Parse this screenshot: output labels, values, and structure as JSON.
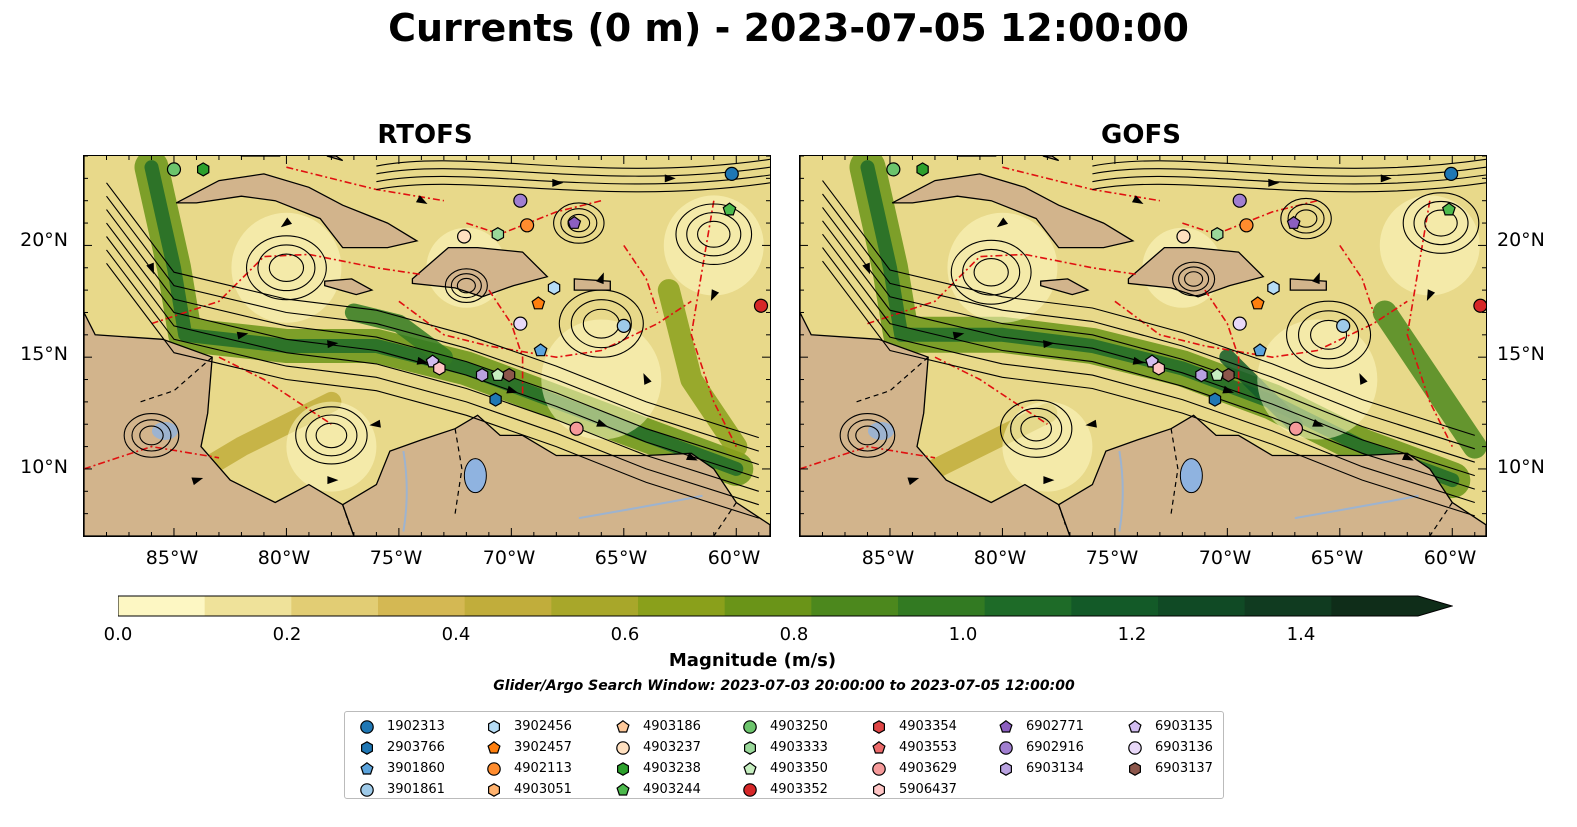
{
  "title": "Currents (0 m) - 2023-07-05 12:00:00",
  "panels": [
    {
      "title": "RTOFS"
    },
    {
      "title": "GOFS"
    }
  ],
  "axes": {
    "lat_labels": [
      "20°N",
      "15°N",
      "10°N"
    ],
    "lon_labels": [
      "85°W",
      "80°W",
      "75°W",
      "70°W",
      "65°W",
      "60°W"
    ],
    "lon_range": [
      -89,
      -58.5
    ],
    "lat_range": [
      7,
      24
    ]
  },
  "colorbar": {
    "label": "Magnitude (m/s)",
    "ticks": [
      "0.0",
      "0.2",
      "0.4",
      "0.6",
      "0.8",
      "1.0",
      "1.2",
      "1.4"
    ],
    "range": [
      0,
      1.5
    ],
    "extend": "max",
    "colors": [
      "#fdf7c3",
      "#efe29a",
      "#e2cd74",
      "#d4b853",
      "#c1ad3b",
      "#a8a72a",
      "#8aa01b",
      "#6a9418",
      "#4c881d",
      "#327a22",
      "#1e6b28",
      "#135a28",
      "#104a25",
      "#103b20",
      "#0f2d19"
    ]
  },
  "search_window": "Glider/Argo Search Window: 2023-07-03 20:00:00 to 2023-07-05 12:00:00",
  "legend": [
    [
      {
        "id": "1902313",
        "shape": "circle",
        "color": "#1f77b4"
      },
      {
        "id": "2903766",
        "shape": "hexagon",
        "color": "#1f77b4"
      },
      {
        "id": "3901860",
        "shape": "pentagon",
        "color": "#5ba3dc"
      },
      {
        "id": "3901861",
        "shape": "circle",
        "color": "#9ecae9"
      }
    ],
    [
      {
        "id": "3902456",
        "shape": "hexagon",
        "color": "#b6dcf5"
      },
      {
        "id": "3902457",
        "shape": "pentagon",
        "color": "#ff7f0e"
      },
      {
        "id": "4902113",
        "shape": "circle",
        "color": "#ff8c2e"
      },
      {
        "id": "4903051",
        "shape": "hexagon",
        "color": "#ffb26e"
      }
    ],
    [
      {
        "id": "4903186",
        "shape": "pentagon",
        "color": "#ffc99a"
      },
      {
        "id": "4903237",
        "shape": "circle",
        "color": "#ffe0c0"
      },
      {
        "id": "4903238",
        "shape": "hexagon",
        "color": "#2ca02c"
      },
      {
        "id": "4903244",
        "shape": "pentagon",
        "color": "#4cba4c"
      }
    ],
    [
      {
        "id": "4903250",
        "shape": "circle",
        "color": "#6cc46c"
      },
      {
        "id": "4903333",
        "shape": "hexagon",
        "color": "#9ad89a"
      },
      {
        "id": "4903350",
        "shape": "pentagon",
        "color": "#c6efc0"
      },
      {
        "id": "4903352",
        "shape": "circle",
        "color": "#d62728"
      }
    ],
    [
      {
        "id": "4903354",
        "shape": "hexagon",
        "color": "#e04646"
      },
      {
        "id": "4903553",
        "shape": "pentagon",
        "color": "#ec6a6a"
      },
      {
        "id": "4903629",
        "shape": "circle",
        "color": "#f59a9a"
      },
      {
        "id": "5906437",
        "shape": "hexagon",
        "color": "#ffc6c6"
      }
    ],
    [
      {
        "id": "6902771",
        "shape": "pentagon",
        "color": "#8c5fc0"
      },
      {
        "id": "6902916",
        "shape": "circle",
        "color": "#a07ed0"
      },
      {
        "id": "6903134",
        "shape": "hexagon",
        "color": "#b9a2e0"
      }
    ],
    [
      {
        "id": "6903135",
        "shape": "pentagon",
        "color": "#d2bdf0"
      },
      {
        "id": "6903136",
        "shape": "circle",
        "color": "#e8d8f8"
      },
      {
        "id": "6903137",
        "shape": "hexagon",
        "color": "#8c564b"
      }
    ]
  ],
  "markers": [
    {
      "id": "1902313",
      "lon": -60.2,
      "lat": 23.2
    },
    {
      "id": "4903244",
      "lon": -60.3,
      "lat": 21.6
    },
    {
      "id": "4903250",
      "lon": -85.0,
      "lat": 23.4
    },
    {
      "id": "4903238",
      "lon": -83.7,
      "lat": 23.4
    },
    {
      "id": "6902916",
      "lon": -69.6,
      "lat": 22.0
    },
    {
      "id": "6902771",
      "lon": -67.2,
      "lat": 21.0
    },
    {
      "id": "4902113",
      "lon": -69.3,
      "lat": 20.9
    },
    {
      "id": "4903333",
      "lon": -70.6,
      "lat": 20.5
    },
    {
      "id": "4903237",
      "lon": -72.1,
      "lat": 20.4
    },
    {
      "id": "3902456",
      "lon": -68.1,
      "lat": 18.1
    },
    {
      "id": "3902457",
      "lon": -68.8,
      "lat": 17.4
    },
    {
      "id": "4903352",
      "lon": -58.9,
      "lat": 17.3
    },
    {
      "id": "6903136",
      "lon": -69.6,
      "lat": 16.5
    },
    {
      "id": "3901861",
      "lon": -65.0,
      "lat": 16.4
    },
    {
      "id": "3901860",
      "lon": -68.7,
      "lat": 15.3
    },
    {
      "id": "6903135",
      "lon": -73.5,
      "lat": 14.8
    },
    {
      "id": "5906437",
      "lon": -73.2,
      "lat": 14.5
    },
    {
      "id": "6903134",
      "lon": -71.3,
      "lat": 14.2
    },
    {
      "id": "4903350",
      "lon": -70.6,
      "lat": 14.2
    },
    {
      "id": "6903137",
      "lon": -70.1,
      "lat": 14.2
    },
    {
      "id": "2903766",
      "lon": -70.7,
      "lat": 13.1
    },
    {
      "id": "4903629",
      "lon": -67.1,
      "lat": 11.8
    }
  ]
}
